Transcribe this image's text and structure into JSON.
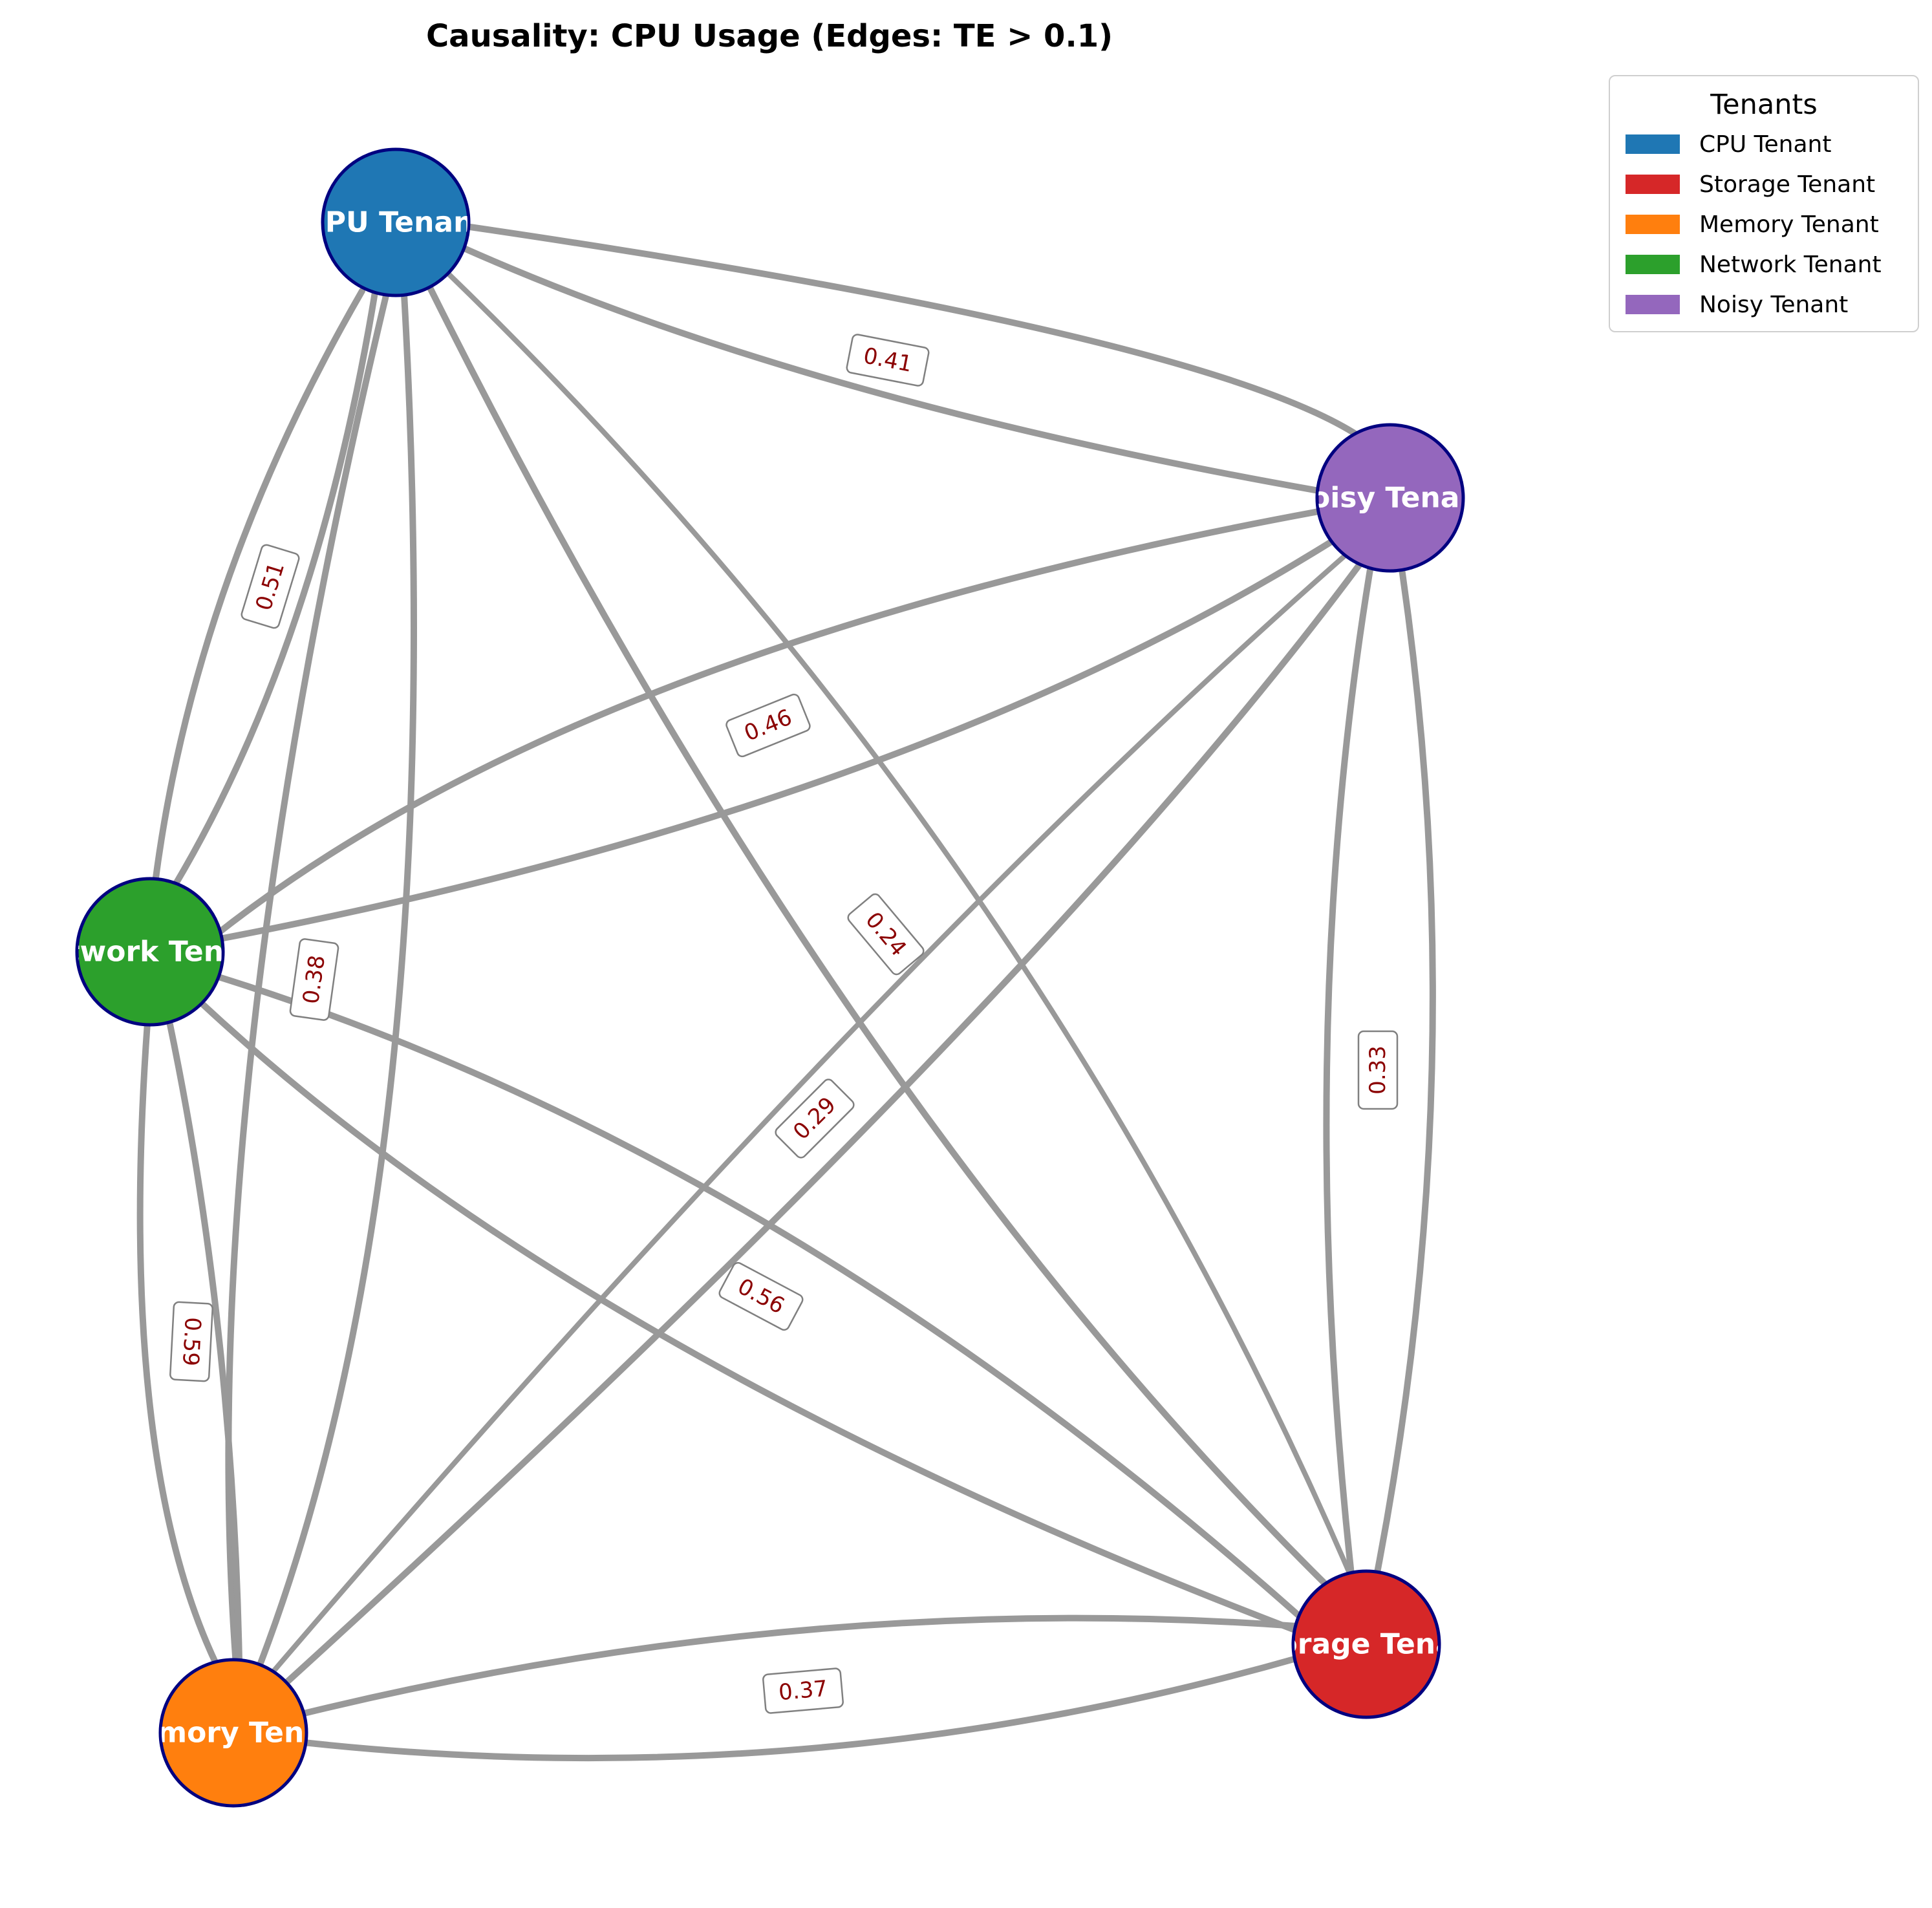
{
  "title": "Causality: CPU Usage (Edges: TE > 0.1)",
  "legend": {
    "title": "Tenants",
    "items": [
      {
        "label": "CPU Tenant",
        "color": "#1f77b4"
      },
      {
        "label": "Storage Tenant",
        "color": "#d62728"
      },
      {
        "label": "Memory Tenant",
        "color": "#ff7f0e"
      },
      {
        "label": "Network Tenant",
        "color": "#2ca02c"
      },
      {
        "label": "Noisy Tenant",
        "color": "#9467bd"
      }
    ]
  },
  "nodes": [
    {
      "id": "cpu",
      "label": "CPU Tenant",
      "color": "#1f77b4"
    },
    {
      "id": "noisy",
      "label": "Noisy Tenant",
      "color": "#9467bd"
    },
    {
      "id": "network",
      "label": "Network Tenant",
      "color": "#2ca02c"
    },
    {
      "id": "memory",
      "label": "Memory Tenant",
      "color": "#ff7f0e"
    },
    {
      "id": "storage",
      "label": "Storage Tenant",
      "color": "#d62728"
    }
  ],
  "edge_labels": [
    "0.41",
    "0.51",
    "0.46",
    "0.24",
    "0.38",
    "0.33",
    "0.29",
    "0.56",
    "0.59",
    "0.37"
  ],
  "colors": {
    "edge": "#999999",
    "node_border": "#000080",
    "edge_label": "#8b0000"
  }
}
